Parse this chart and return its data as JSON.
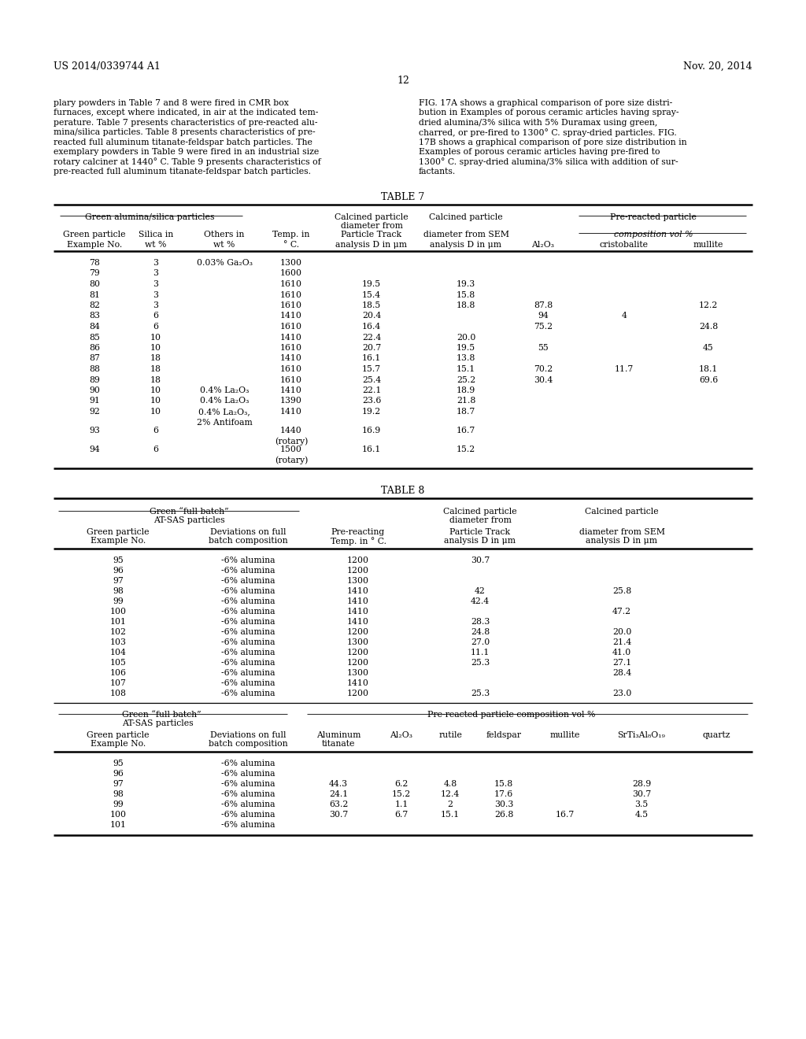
{
  "header_left": "US 2014/0339744 A1",
  "header_right": "Nov. 20, 2014",
  "page_number": "12",
  "body_left_lines": [
    "plary powders in Table 7 and 8 were fired in CMR box",
    "furnaces, except where indicated, in air at the indicated tem-",
    "perature. Table 7 presents characteristics of pre-reacted alu-",
    "mina/silica particles. Table 8 presents characteristics of pre-",
    "reacted full aluminum titanate-feldspar batch particles. The",
    "exemplary powders in Table 9 were fired in an industrial size",
    "rotary calciner at 1440° C. Table 9 presents characteristics of",
    "pre-reacted full aluminum titanate-feldspar batch particles."
  ],
  "body_right_lines": [
    "FIG. 17A shows a graphical comparison of pore size distri-",
    "bution in Examples of porous ceramic articles having spray-",
    "dried alumina/3% silica with 5% Duramax using green,",
    "charred, or pre-fired to 1300° C. spray-dried particles. FIG.",
    "17B shows a graphical comparison of pore size distribution in",
    "Examples of porous ceramic articles having pre-fired to",
    "1300° C. spray-dried alumina/3% silica with addition of sur-",
    "factants."
  ],
  "table7_title": "TABLE 7",
  "table8_title": "TABLE 8",
  "t7_col_positions": [
    120,
    198,
    285,
    370,
    472,
    592,
    690,
    793,
    900
  ],
  "t8_upper_col_positions": [
    150,
    315,
    455,
    610,
    790
  ],
  "t8_lower_col_positions": [
    150,
    315,
    430,
    510,
    572,
    640,
    718,
    815,
    910
  ],
  "t7_data": [
    [
      "78",
      "3",
      "0.03% Ga₂O₃",
      "1300",
      "",
      "",
      "",
      "",
      ""
    ],
    [
      "79",
      "3",
      "",
      "1600",
      "",
      "",
      "",
      "",
      ""
    ],
    [
      "80",
      "3",
      "",
      "1610",
      "19.5",
      "19.3",
      "",
      "",
      ""
    ],
    [
      "81",
      "3",
      "",
      "1610",
      "15.4",
      "15.8",
      "",
      "",
      ""
    ],
    [
      "82",
      "3",
      "",
      "1610",
      "18.5",
      "18.8",
      "87.8",
      "",
      "12.2"
    ],
    [
      "83",
      "6",
      "",
      "1410",
      "20.4",
      "",
      "94",
      "4",
      ""
    ],
    [
      "84",
      "6",
      "",
      "1610",
      "16.4",
      "",
      "75.2",
      "",
      "24.8"
    ],
    [
      "85",
      "10",
      "",
      "1410",
      "22.4",
      "20.0",
      "",
      "",
      ""
    ],
    [
      "86",
      "10",
      "",
      "1610",
      "20.7",
      "19.5",
      "55",
      "",
      "45"
    ],
    [
      "87",
      "18",
      "",
      "1410",
      "16.1",
      "13.8",
      "",
      "",
      ""
    ],
    [
      "88",
      "18",
      "",
      "1610",
      "15.7",
      "15.1",
      "70.2",
      "11.7",
      "18.1"
    ],
    [
      "89",
      "18",
      "",
      "1610",
      "25.4",
      "25.2",
      "30.4",
      "",
      "69.6"
    ],
    [
      "90",
      "10",
      "0.4% La₂O₃",
      "1410",
      "22.1",
      "18.9",
      "",
      "",
      ""
    ],
    [
      "91",
      "10",
      "0.4% La₂O₃",
      "1390",
      "23.6",
      "21.8",
      "",
      "",
      ""
    ],
    [
      "92",
      "10",
      "0.4% La₂O₃,|2% Antifoam",
      "1410",
      "19.2",
      "18.7",
      "",
      "",
      ""
    ],
    [
      "93",
      "6",
      "",
      "1440|(rotary)",
      "16.9",
      "16.7",
      "",
      "",
      ""
    ],
    [
      "94",
      "6",
      "",
      "1500|(rotary)",
      "16.1",
      "15.2",
      "",
      "",
      ""
    ]
  ],
  "t8_upper_data": [
    [
      "95",
      "-6% alumina",
      "1200",
      "30.7",
      ""
    ],
    [
      "96",
      "-6% alumina",
      "1200",
      "",
      ""
    ],
    [
      "97",
      "-6% alumina",
      "1300",
      "",
      ""
    ],
    [
      "98",
      "-6% alumina",
      "1410",
      "42",
      "25.8"
    ],
    [
      "99",
      "-6% alumina",
      "1410",
      "42.4",
      ""
    ],
    [
      "100",
      "-6% alumina",
      "1410",
      "",
      "47.2"
    ],
    [
      "101",
      "-6% alumina",
      "1410",
      "28.3",
      ""
    ],
    [
      "102",
      "-6% alumina",
      "1200",
      "24.8",
      "20.0"
    ],
    [
      "103",
      "-6% alumina",
      "1300",
      "27.0",
      "21.4"
    ],
    [
      "104",
      "-6% alumina",
      "1200",
      "11.1",
      "41.0"
    ],
    [
      "105",
      "-6% alumina",
      "1200",
      "25.3",
      "27.1"
    ],
    [
      "106",
      "-6% alumina",
      "1300",
      "",
      "28.4"
    ],
    [
      "107",
      "-6% alumina",
      "1410",
      "",
      ""
    ],
    [
      "108",
      "-6% alumina",
      "1200",
      "25.3",
      "23.0"
    ]
  ],
  "t8_lower_data": [
    [
      "95",
      "-6% alumina",
      "",
      "",
      "",
      "",
      "",
      "",
      ""
    ],
    [
      "96",
      "-6% alumina",
      "",
      "",
      "",
      "",
      "",
      "",
      ""
    ],
    [
      "97",
      "-6% alumina",
      "44.3",
      "6.2",
      "4.8",
      "15.8",
      "",
      "28.9",
      ""
    ],
    [
      "98",
      "-6% alumina",
      "24.1",
      "15.2",
      "12.4",
      "17.6",
      "",
      "30.7",
      ""
    ],
    [
      "99",
      "-6% alumina",
      "63.2",
      "1.1",
      "2",
      "30.3",
      "",
      "3.5",
      ""
    ],
    [
      "100",
      "-6% alumina",
      "30.7",
      "6.7",
      "15.1",
      "26.8",
      "16.7",
      "4.5",
      ""
    ],
    [
      "101",
      "-6% alumina",
      "",
      "",
      "",
      "",
      "",
      "",
      ""
    ]
  ]
}
